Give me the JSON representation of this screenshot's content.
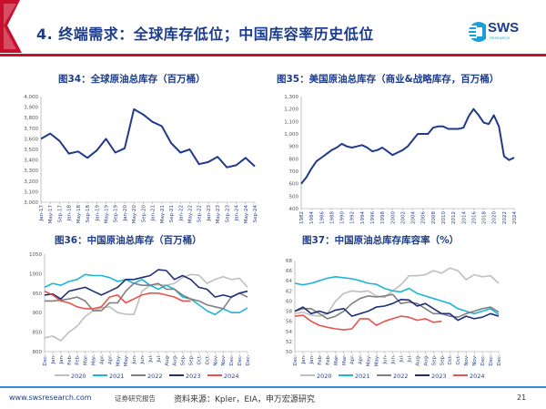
{
  "header": {
    "title": "4. 终端需求：全球库存低位；中国库容率历史低位",
    "logo_text": "SWS",
    "logo_sub": "RESEARCH"
  },
  "colors": {
    "brand_blue": "#1b3c8c",
    "accent_red": "#c8102e",
    "line_main": "#1f3a8a"
  },
  "footer": {
    "website": "www.swsresearch.com",
    "tag": "证券研究报告",
    "source": "资料来源：Kpler，EIA，申万宏源研究",
    "page": "21"
  },
  "chart_data": [
    {
      "type": "line",
      "title": "图34：全球原油总库存（百万桶）",
      "ylim": [
        3000,
        4000
      ],
      "yticks": [
        "3,000",
        "3,100",
        "3,200",
        "3,300",
        "3,400",
        "3,500",
        "3,600",
        "3,700",
        "3,800",
        "3,900",
        "4,000"
      ],
      "categories": [
        "Jan-17",
        "May-17",
        "Sep-17",
        "Jan-18",
        "May-18",
        "Sep-18",
        "Jan-19",
        "May-19",
        "Sep-19",
        "Jan-20",
        "May-20",
        "Sep-20",
        "Jan-21",
        "May-21",
        "Sep-21",
        "Jan-22",
        "May-22",
        "Sep-22",
        "Jan-23",
        "May-23",
        "Sep-23",
        "Jan-24",
        "May-24",
        "Sep-24"
      ],
      "series": [
        {
          "values": [
            3600,
            3650,
            3580,
            3460,
            3480,
            3420,
            3490,
            3600,
            3470,
            3510,
            3880,
            3830,
            3760,
            3720,
            3560,
            3470,
            3500,
            3360,
            3380,
            3430,
            3330,
            3350,
            3420,
            3340
          ]
        }
      ],
      "grid": false
    },
    {
      "type": "line",
      "title": "图35：美国原油总库存（商业&战略库存，百万桶）",
      "ylim": [
        400,
        1300
      ],
      "yticks": [
        "400",
        "500",
        "600",
        "700",
        "800",
        "900",
        "1,000",
        "1,100",
        "1,200",
        "1,300"
      ],
      "categories": [
        "1982",
        "1983",
        "1984",
        "1985",
        "1986",
        "1987",
        "1988",
        "1989",
        "1990",
        "1991",
        "1992",
        "1993",
        "1994",
        "1995",
        "1996",
        "1997",
        "1998",
        "1999",
        "2000",
        "2001",
        "2002",
        "2003",
        "2004",
        "2005",
        "2006",
        "2007",
        "2008",
        "2009",
        "2010",
        "2011",
        "2012",
        "2013",
        "2014",
        "2015",
        "2016",
        "2017",
        "2018",
        "2019",
        "2020",
        "2021",
        "2022",
        "2023",
        "2024"
      ],
      "label_every": 2,
      "series": [
        {
          "values": [
            600,
            650,
            720,
            780,
            810,
            840,
            870,
            890,
            920,
            900,
            890,
            900,
            910,
            890,
            860,
            870,
            890,
            860,
            830,
            850,
            870,
            900,
            950,
            1000,
            1000,
            1000,
            1050,
            1060,
            1060,
            1040,
            1040,
            1040,
            1050,
            1140,
            1200,
            1150,
            1090,
            1080,
            1150,
            1060,
            820,
            790,
            810
          ]
        }
      ],
      "grid": false
    },
    {
      "type": "line",
      "title": "图36：中国原油总库存（百万桶）",
      "ylim": [
        800,
        1050
      ],
      "yticks": [
        "800",
        "850",
        "900",
        "950",
        "1000",
        "1050"
      ],
      "categories": [
        "Dec-",
        "Jan-",
        "Jan-",
        "Feb-",
        "Feb-",
        "Mar-",
        "Mar-",
        "Apr-",
        "Apr-",
        "May-",
        "May-",
        "Jun-",
        "Jun-",
        "Jul-",
        "Jul-",
        "Aug-",
        "Aug-",
        "Sep-",
        "Sep-",
        "Oct-",
        "Oct-",
        "Nov-",
        "Nov-",
        "Dec-",
        "Dec-",
        "Dec-"
      ],
      "series": [
        {
          "name": "2020",
          "color": "#bfbfbf",
          "values": [
            835,
            840,
            828,
            850,
            865,
            890,
            905,
            912,
            915,
            900,
            896,
            895,
            955,
            970,
            972,
            970,
            975,
            990,
            998,
            996,
            975,
            985,
            992,
            985,
            988,
            965
          ]
        },
        {
          "name": "2021",
          "color": "#1fb5d6",
          "values": [
            965,
            975,
            970,
            980,
            985,
            998,
            995,
            995,
            990,
            980,
            985,
            975,
            985,
            970,
            960,
            970,
            960,
            940,
            935,
            920,
            905,
            895,
            910,
            900,
            900,
            912
          ]
        },
        {
          "name": "2022",
          "color": "#7f7f7f",
          "values": [
            930,
            930,
            932,
            935,
            940,
            930,
            905,
            905,
            925,
            925,
            955,
            975,
            970,
            970,
            975,
            960,
            960,
            945,
            935,
            930,
            920,
            915,
            910,
            940,
            950,
            940
          ]
        },
        {
          "name": "2023",
          "color": "#1f2f7a",
          "values": [
            945,
            948,
            935,
            955,
            960,
            965,
            955,
            945,
            955,
            965,
            985,
            985,
            990,
            995,
            1010,
            1008,
            985,
            995,
            985,
            965,
            960,
            940,
            945,
            940,
            950,
            955
          ]
        },
        {
          "name": "2024",
          "color": "#e8534f",
          "values": [
            955,
            945,
            930,
            925,
            915,
            910,
            910,
            915,
            940,
            945,
            925,
            935,
            945,
            950,
            950,
            945,
            940,
            930,
            930,
            null,
            null,
            null,
            null,
            null,
            null,
            null
          ]
        }
      ],
      "legend": "bottom",
      "grid": false
    },
    {
      "type": "line",
      "title": "图37：中国原油总库存库容率（%）",
      "ylim": [
        50,
        68
      ],
      "yticks": [
        "50",
        "52",
        "54",
        "56",
        "58",
        "60",
        "62",
        "64",
        "66",
        "68"
      ],
      "categories": [
        "Dec-",
        "Jan-",
        "Jan-",
        "Feb-",
        "Feb-",
        "Mar-",
        "Mar-",
        "Apr-",
        "Apr-",
        "May-",
        "May-",
        "Jun-",
        "Jun-",
        "Jul-",
        "Jul-",
        "Aug-",
        "Aug-",
        "Sep-",
        "Sep-",
        "Oct-",
        "Oct-",
        "Nov-",
        "Nov-",
        "Dec-",
        "Dec-",
        "Dec-"
      ],
      "series": [
        {
          "name": "2020",
          "color": "#bfbfbf",
          "values": [
            57.5,
            57.8,
            57.2,
            57.0,
            57.5,
            60.0,
            61.5,
            62.0,
            61.8,
            62.0,
            61.0,
            60.7,
            62.0,
            63.2,
            65.0,
            65.0,
            65.2,
            66.0,
            65.5,
            66.5,
            66.0,
            64.2,
            65.2,
            64.8,
            65.0,
            63.5
          ]
        },
        {
          "name": "2021",
          "color": "#1fb5d6",
          "values": [
            63.5,
            63.2,
            63.5,
            64.0,
            64.5,
            64.8,
            64.6,
            64.4,
            64.0,
            63.5,
            63.3,
            62.5,
            62.0,
            61.8,
            62.5,
            61.5,
            61.0,
            60.5,
            60.0,
            59.5,
            58.5,
            58.0,
            57.5,
            58.0,
            58.5,
            57.3
          ]
        },
        {
          "name": "2022",
          "color": "#7f7f7f",
          "values": [
            58.0,
            58.5,
            58.5,
            57.5,
            56.5,
            57.0,
            58.0,
            59.5,
            60.5,
            61.0,
            60.8,
            61.0,
            61.3,
            59.5,
            59.8,
            59.5,
            58.5,
            57.5,
            57.5,
            57.0,
            56.8,
            57.5,
            58.0,
            58.5,
            58.8,
            57.8
          ]
        },
        {
          "name": "2023",
          "color": "#1f2f7a",
          "values": [
            58.0,
            58.8,
            57.5,
            58.0,
            57.5,
            58.2,
            58.5,
            57.0,
            57.5,
            58.0,
            58.8,
            59.0,
            59.5,
            60.3,
            60.2,
            59.0,
            59.5,
            58.5,
            57.5,
            57.5,
            56.2,
            57.0,
            56.5,
            56.8,
            57.5,
            57.0
          ]
        },
        {
          "name": "2024",
          "color": "#e8534f",
          "values": [
            57.0,
            57.2,
            56.0,
            55.2,
            54.8,
            54.5,
            54.3,
            54.5,
            56.5,
            56.5,
            55.2,
            56.0,
            56.5,
            57.0,
            56.8,
            56.2,
            56.5,
            55.8,
            56.0,
            null,
            null,
            null,
            null,
            null,
            null,
            null
          ]
        }
      ],
      "legend": "bottom",
      "grid": false
    }
  ]
}
